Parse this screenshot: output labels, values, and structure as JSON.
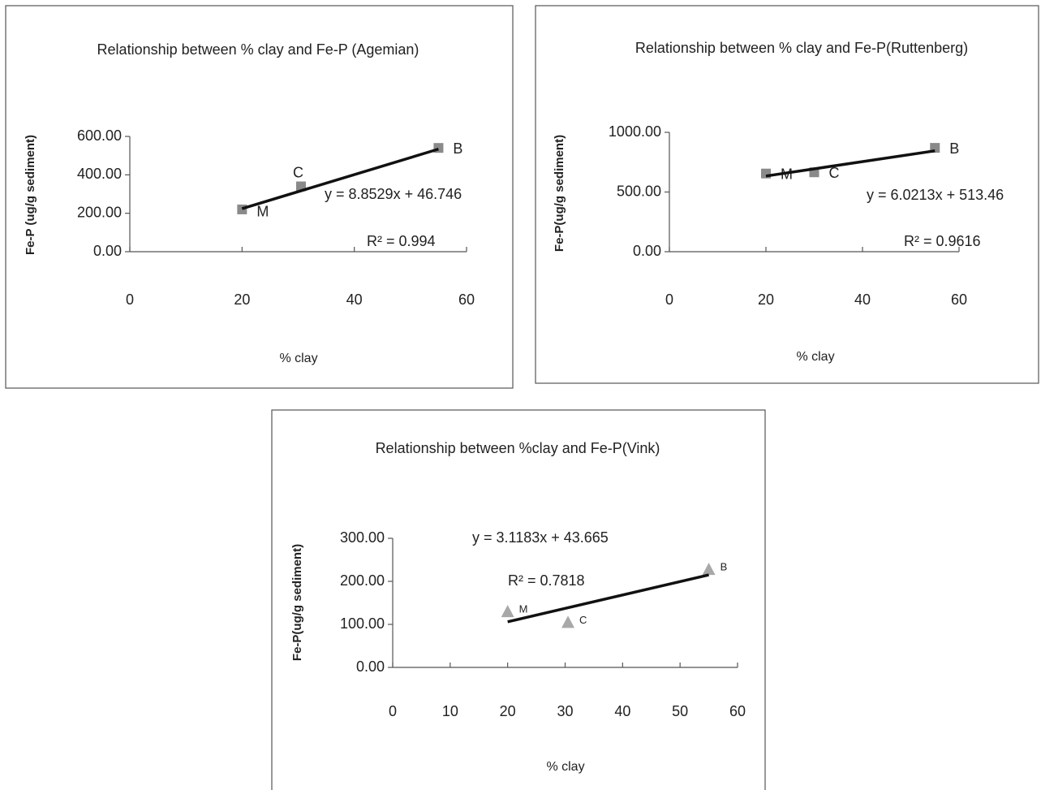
{
  "chart_data": [
    {
      "type": "scatter",
      "title": "Relationship between % clay and Fe-P (Agemian)",
      "x_label": "% clay",
      "y_label": "Fe-P (ug/g sediment)",
      "x": [
        20,
        30.5,
        55
      ],
      "values": [
        220,
        340,
        540
      ],
      "point_labels": [
        "M",
        "C",
        "B"
      ],
      "marker": "square",
      "color": "#8a8a8a",
      "trendline": {
        "x": [
          20,
          55
        ],
        "y": [
          224,
          534
        ]
      },
      "annotations": [
        "y = 8.8529x + 46.746",
        "R² = 0.994"
      ],
      "xlim": [
        0,
        60
      ],
      "xticks": [
        0,
        20,
        40,
        60
      ],
      "ylim": [
        0,
        600
      ],
      "yticks": [
        {
          "value": 0,
          "label": "0.00"
        },
        {
          "value": 200,
          "label": "200.00"
        },
        {
          "value": 400,
          "label": "400.00"
        },
        {
          "value": 600,
          "label": "600.00"
        }
      ]
    },
    {
      "type": "scatter",
      "title": "Relationship between % clay and Fe-P(Ruttenberg)",
      "x_label": "% clay",
      "y_label": "Fe-P(ug/g sediment)",
      "x": [
        20,
        30,
        55
      ],
      "values": [
        655,
        665,
        870
      ],
      "point_labels": [
        "M",
        "C",
        "B"
      ],
      "marker": "square",
      "color": "#8a8a8a",
      "trendline": {
        "x": [
          20,
          55
        ],
        "y": [
          634,
          845
        ]
      },
      "annotations": [
        "y = 6.0213x + 513.46",
        "R² = 0.9616"
      ],
      "xlim": [
        0,
        60
      ],
      "xticks": [
        0,
        20,
        40,
        60
      ],
      "ylim": [
        0,
        1000
      ],
      "yticks": [
        {
          "value": 0,
          "label": "0.00"
        },
        {
          "value": 500,
          "label": "500.00"
        },
        {
          "value": 1000,
          "label": "1000.00"
        }
      ]
    },
    {
      "type": "scatter",
      "title": "Relationship between %clay and Fe-P(Vink)",
      "x_label": "% clay",
      "y_label": "Fe-P(ug/g sediment)",
      "x": [
        20,
        30.5,
        55
      ],
      "values": [
        130,
        105,
        228
      ],
      "point_labels": [
        "M",
        "C",
        "B"
      ],
      "marker": "triangle",
      "color": "#a8a8a8",
      "trendline": {
        "x": [
          20,
          55
        ],
        "y": [
          106,
          215
        ]
      },
      "annotations": [
        "y = 3.1183x + 43.665",
        "R² = 0.7818"
      ],
      "xlim": [
        0,
        60
      ],
      "xticks": [
        0,
        10,
        20,
        30,
        40,
        50,
        60
      ],
      "ylim": [
        0,
        300
      ],
      "yticks": [
        {
          "value": 0,
          "label": "0.00"
        },
        {
          "value": 100,
          "label": "100.00"
        },
        {
          "value": 200,
          "label": "200.00"
        },
        {
          "value": 300,
          "label": "300.00"
        }
      ]
    }
  ]
}
